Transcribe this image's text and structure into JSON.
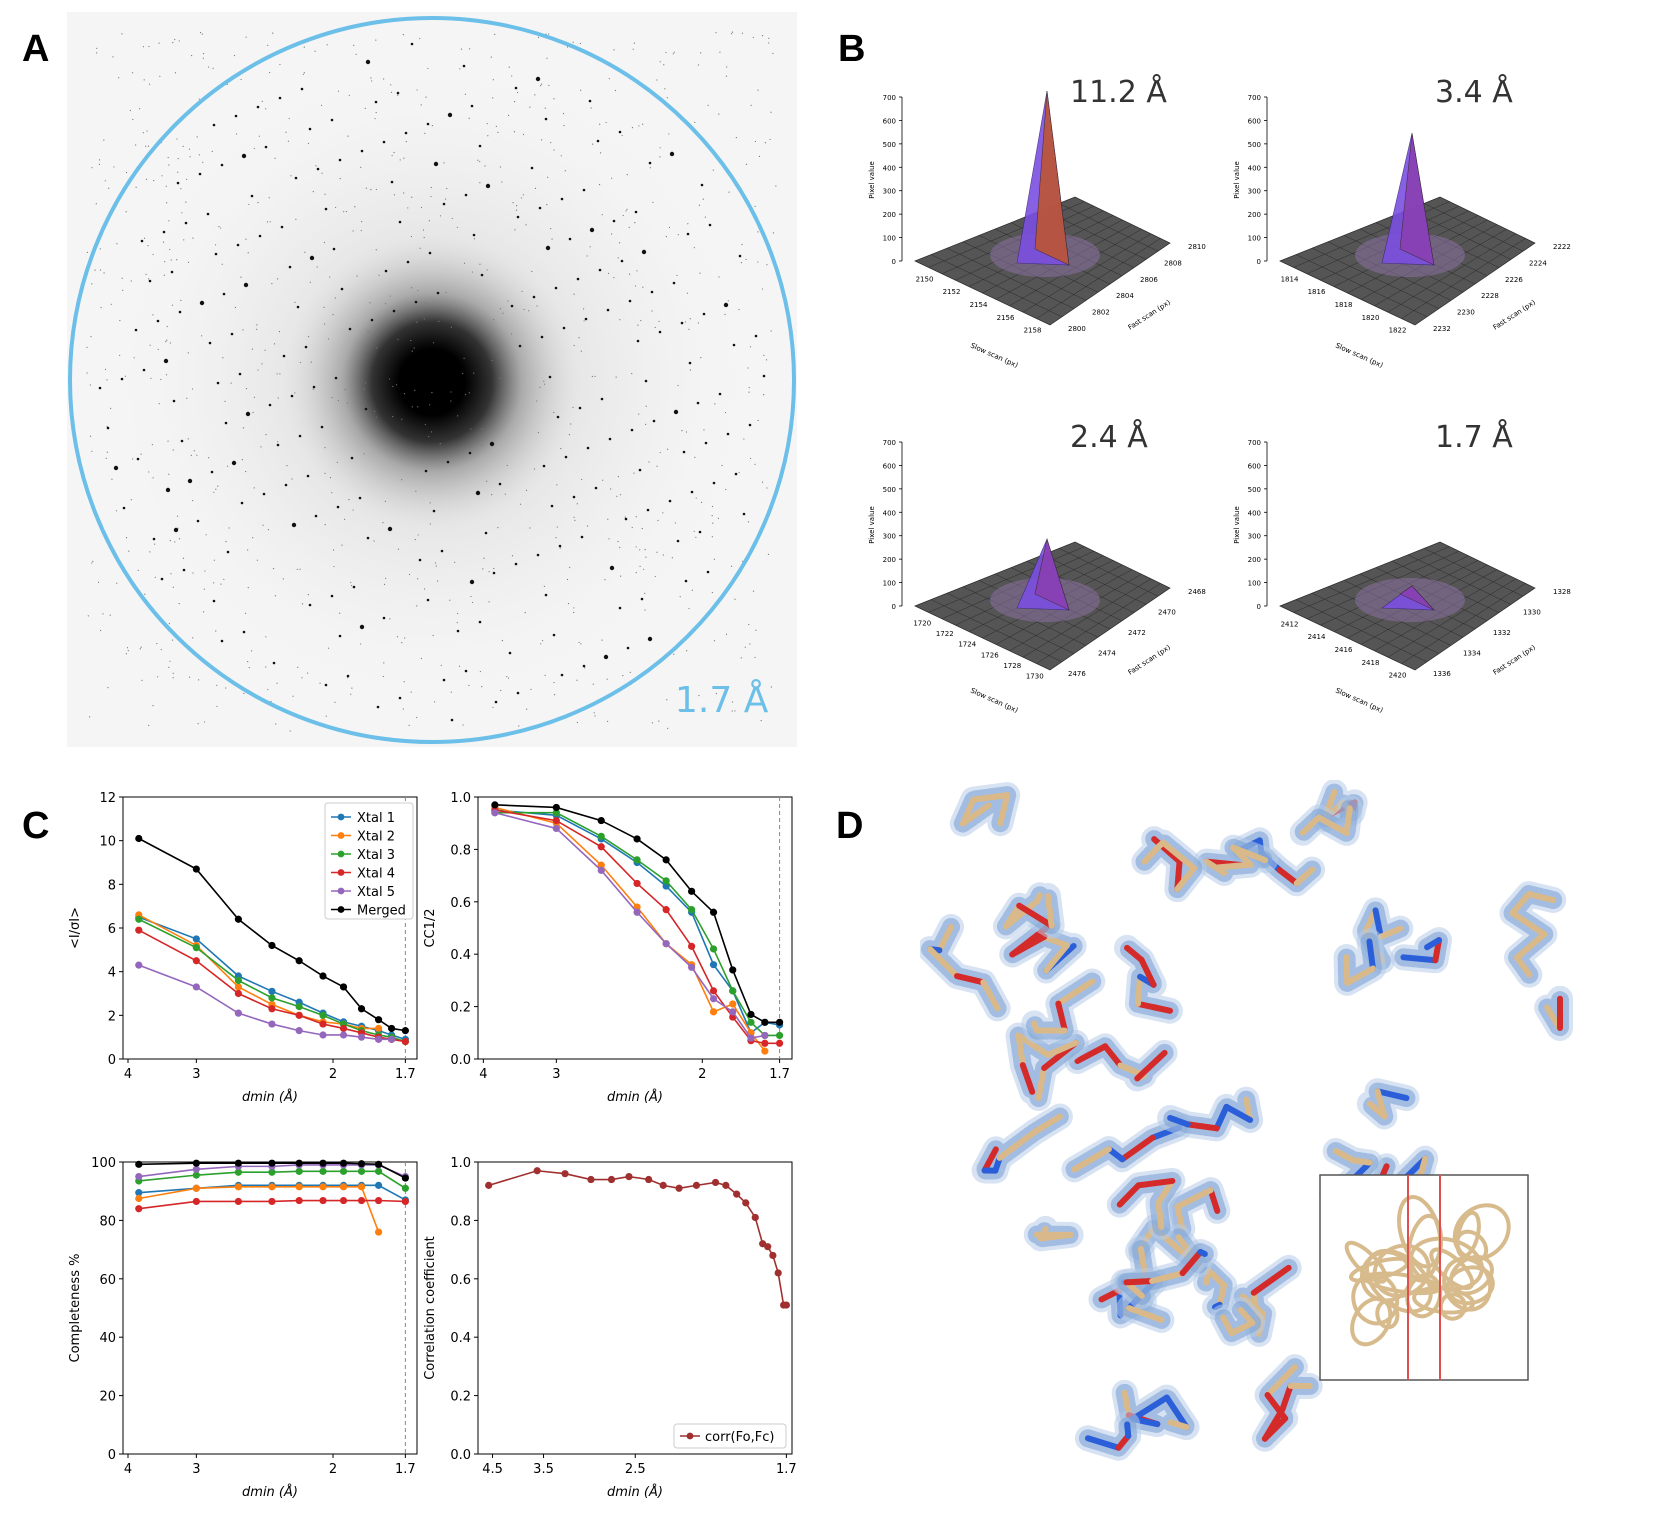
{
  "panels": {
    "a": "A",
    "b": "B",
    "c": "C",
    "d": "D"
  },
  "diffraction": {
    "resolution_label": "1.7 Å",
    "ring_color": "#6cbfe8"
  },
  "peaks": [
    {
      "label": "11.2 Å",
      "height": 700,
      "slow_ticks": [
        "2150",
        "2152",
        "2154",
        "2156",
        "2158"
      ],
      "fast_ticks": [
        "2800",
        "2802",
        "2804",
        "2806",
        "2808",
        "2810"
      ]
    },
    {
      "label": "3.4 Å",
      "height": 520,
      "slow_ticks": [
        "1814",
        "1816",
        "1818",
        "1820",
        "1822"
      ],
      "fast_ticks": [
        "2232",
        "2230",
        "2228",
        "2226",
        "2224",
        "2222"
      ]
    },
    {
      "label": "2.4 Å",
      "height": 260,
      "slow_ticks": [
        "1720",
        "1722",
        "1724",
        "1726",
        "1728",
        "1730"
      ],
      "fast_ticks": [
        "2476",
        "2474",
        "2472",
        "2470",
        "2468"
      ]
    },
    {
      "label": "1.7 Å",
      "height": 60,
      "slow_ticks": [
        "2412",
        "2414",
        "2416",
        "2418",
        "2420"
      ],
      "fast_ticks": [
        "1336",
        "1334",
        "1332",
        "1330",
        "1328"
      ]
    }
  ],
  "peak_axes": {
    "z_ticks": [
      "0",
      "100",
      "200",
      "300",
      "400",
      "500",
      "600",
      "700"
    ],
    "z_label": "Pixel value",
    "slow_label": "Slow scan (px)",
    "fast_label": "Fast scan (px)"
  },
  "chart_data": [
    {
      "type": "line",
      "ylabel": "<I/σI>",
      "xlabel": "dmin (Å)",
      "x_ticks": [
        "4",
        "3",
        "2",
        "1.7"
      ],
      "ylim": [
        0,
        12
      ],
      "y_ticks": [
        "0",
        "2",
        "4",
        "6",
        "8",
        "10",
        "12"
      ],
      "legend_position": "top-right",
      "dashed_x": 1.7,
      "x": [
        3.8,
        3.0,
        2.6,
        2.35,
        2.18,
        2.05,
        1.95,
        1.87,
        1.8,
        1.75,
        1.7
      ],
      "series": [
        {
          "name": "Xtal 1",
          "color": "#1f77b4",
          "values": [
            6.5,
            5.5,
            3.8,
            3.1,
            2.6,
            2.1,
            1.7,
            1.5,
            1.3,
            1.1,
            0.9
          ]
        },
        {
          "name": "Xtal 2",
          "color": "#ff7f0e",
          "values": [
            6.6,
            5.2,
            3.3,
            2.5,
            2.0,
            1.7,
            1.6,
            1.4,
            1.4,
            null,
            null
          ]
        },
        {
          "name": "Xtal 3",
          "color": "#2ca02c",
          "values": [
            6.4,
            5.1,
            3.6,
            2.8,
            2.4,
            2.0,
            1.6,
            1.3,
            1.1,
            1.0,
            0.8
          ]
        },
        {
          "name": "Xtal 4",
          "color": "#d62728",
          "values": [
            5.9,
            4.5,
            3.0,
            2.3,
            2.0,
            1.6,
            1.4,
            1.2,
            1.0,
            0.9,
            0.8
          ]
        },
        {
          "name": "Xtal 5",
          "color": "#9467bd",
          "values": [
            4.3,
            3.3,
            2.1,
            1.6,
            1.3,
            1.1,
            1.1,
            1.0,
            0.9,
            0.9,
            null
          ]
        },
        {
          "name": "Merged",
          "color": "#000000",
          "values": [
            10.1,
            8.7,
            6.4,
            5.2,
            4.5,
            3.8,
            3.3,
            2.3,
            1.8,
            1.4,
            1.3
          ]
        }
      ]
    },
    {
      "type": "line",
      "ylabel": "CC1/2",
      "xlabel": "dmin (Å)",
      "x_ticks": [
        "4",
        "3",
        "2",
        "1.7"
      ],
      "ylim": [
        0,
        1.0
      ],
      "y_ticks": [
        "0.0",
        "0.2",
        "0.4",
        "0.6",
        "0.8",
        "1.0"
      ],
      "dashed_x": 1.7,
      "x": [
        3.8,
        3.0,
        2.6,
        2.35,
        2.18,
        2.05,
        1.95,
        1.87,
        1.8,
        1.75,
        1.7
      ],
      "series": [
        {
          "name": "Xtal 1",
          "color": "#1f77b4",
          "values": [
            0.95,
            0.93,
            0.84,
            0.75,
            0.66,
            0.56,
            0.36,
            0.26,
            0.1,
            0.14,
            0.13
          ]
        },
        {
          "name": "Xtal 2",
          "color": "#ff7f0e",
          "values": [
            0.96,
            0.9,
            0.74,
            0.58,
            0.44,
            0.36,
            0.18,
            0.21,
            0.1,
            0.03,
            null
          ]
        },
        {
          "name": "Xtal 3",
          "color": "#2ca02c",
          "values": [
            0.94,
            0.94,
            0.85,
            0.76,
            0.68,
            0.57,
            0.42,
            0.26,
            0.14,
            0.09,
            0.09
          ]
        },
        {
          "name": "Xtal 4",
          "color": "#d62728",
          "values": [
            0.95,
            0.91,
            0.81,
            0.67,
            0.57,
            0.43,
            0.26,
            0.16,
            0.07,
            0.06,
            0.06
          ]
        },
        {
          "name": "Xtal 5",
          "color": "#9467bd",
          "values": [
            0.94,
            0.88,
            0.72,
            0.56,
            0.44,
            0.35,
            0.23,
            0.18,
            0.08,
            0.09,
            null
          ]
        },
        {
          "name": "Merged",
          "color": "#000000",
          "values": [
            0.97,
            0.96,
            0.91,
            0.84,
            0.76,
            0.64,
            0.56,
            0.34,
            0.17,
            0.14,
            0.14
          ]
        }
      ]
    },
    {
      "type": "line",
      "ylabel": "Completeness %",
      "xlabel": "dmin (Å)",
      "x_ticks": [
        "4",
        "3",
        "2",
        "1.7"
      ],
      "ylim": [
        0,
        100
      ],
      "y_ticks": [
        "0",
        "20",
        "40",
        "60",
        "80",
        "100"
      ],
      "dashed_x": 1.7,
      "x": [
        3.8,
        3.0,
        2.6,
        2.35,
        2.18,
        2.05,
        1.95,
        1.87,
        1.8,
        1.75,
        1.7
      ],
      "series": [
        {
          "name": "Xtal 1",
          "color": "#1f77b4",
          "values": [
            89.5,
            91,
            92,
            92,
            92,
            92,
            92,
            92,
            92,
            null,
            87
          ]
        },
        {
          "name": "Xtal 2",
          "color": "#ff7f0e",
          "values": [
            87.5,
            91,
            91.5,
            91.5,
            91.5,
            91.5,
            91.5,
            91.5,
            76,
            null,
            null
          ]
        },
        {
          "name": "Xtal 3",
          "color": "#2ca02c",
          "values": [
            93.5,
            95.5,
            96.5,
            96.5,
            96.8,
            96.8,
            96.8,
            96.8,
            96.8,
            null,
            91
          ]
        },
        {
          "name": "Xtal 4",
          "color": "#d62728",
          "values": [
            84,
            86.5,
            86.5,
            86.5,
            86.8,
            86.8,
            86.8,
            86.8,
            86.8,
            null,
            86.5
          ]
        },
        {
          "name": "Xtal 5",
          "color": "#9467bd",
          "values": [
            95,
            97.5,
            98.5,
            98.5,
            99,
            99,
            99,
            99,
            99,
            null,
            95
          ]
        },
        {
          "name": "Merged",
          "color": "#000000",
          "values": [
            99.2,
            99.6,
            99.6,
            99.6,
            99.6,
            99.6,
            99.6,
            99.4,
            99.2,
            null,
            94.5
          ]
        }
      ]
    },
    {
      "type": "line",
      "ylabel": "Correlation coefficient",
      "xlabel": "dmin (Å)",
      "x_ticks": [
        "4.5",
        "3.5",
        "2.5",
        "1.7"
      ],
      "ylim": [
        0,
        1.0
      ],
      "y_ticks": [
        "0.0",
        "0.2",
        "0.4",
        "0.6",
        "0.8",
        "1.0"
      ],
      "legend_position": "bottom-right",
      "series": [
        {
          "name": "corr(Fo,Fc)",
          "color": "#a03030",
          "x": [
            4.6,
            3.6,
            3.2,
            2.9,
            2.7,
            2.55,
            2.4,
            2.3,
            2.2,
            2.1,
            2.0,
            1.95,
            1.9,
            1.86,
            1.82,
            1.79,
            1.77,
            1.75,
            1.73,
            1.71,
            1.7
          ],
          "values": [
            0.92,
            0.97,
            0.96,
            0.94,
            0.94,
            0.95,
            0.94,
            0.92,
            0.91,
            0.92,
            0.93,
            0.92,
            0.89,
            0.86,
            0.81,
            0.72,
            0.71,
            0.68,
            0.62,
            0.51,
            0.51
          ]
        }
      ]
    }
  ]
}
